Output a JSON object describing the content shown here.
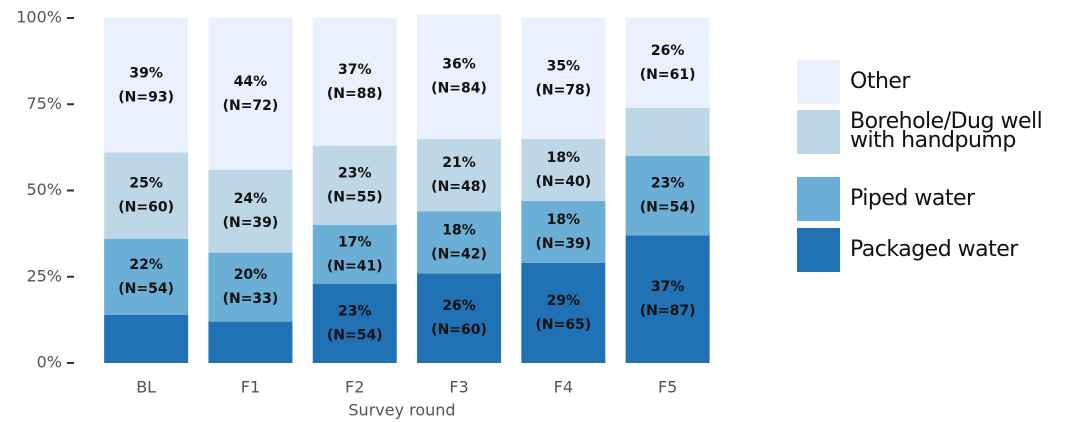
{
  "chart_data": {
    "type": "stacked_bar",
    "x_label": "Survey round",
    "categories": [
      "BL",
      "F1",
      "F2",
      "F3",
      "F4",
      "F5"
    ],
    "series": [
      {
        "name": "Packaged water",
        "color": "#2171b5",
        "values": [
          14,
          12,
          23,
          26,
          29,
          37
        ],
        "value_labels": [
          null,
          null,
          "23%",
          "26%",
          "29%",
          "37%"
        ],
        "n_labels": [
          null,
          null,
          "(N=54)",
          "(N=60)",
          "(N=65)",
          "(N=87)"
        ]
      },
      {
        "name": "Piped water",
        "color": "#6baed6",
        "values": [
          22,
          20,
          17,
          18,
          18,
          23
        ],
        "value_labels": [
          "22%",
          "20%",
          "17%",
          "18%",
          "18%",
          "23%"
        ],
        "n_labels": [
          "(N=54)",
          "(N=33)",
          "(N=41)",
          "(N=42)",
          "(N=39)",
          "(N=54)"
        ]
      },
      {
        "name": "Borehole/Dug well with handpump",
        "color": "#bdd7e7",
        "values": [
          25,
          24,
          23,
          21,
          18,
          14
        ],
        "value_labels": [
          "25%",
          "24%",
          "23%",
          "21%",
          "18%",
          null
        ],
        "n_labels": [
          "(N=60)",
          "(N=39)",
          "(N=55)",
          "(N=48)",
          "(N=40)",
          null
        ]
      },
      {
        "name": "Other",
        "color": "#eaf0fd",
        "values": [
          39,
          44,
          37,
          36,
          35,
          26
        ],
        "value_labels": [
          "39%",
          "44%",
          "37%",
          "36%",
          "35%",
          "26%"
        ],
        "n_labels": [
          "(N=93)",
          "(N=72)",
          "(N=88)",
          "(N=84)",
          "(N=78)",
          "(N=61)"
        ]
      }
    ],
    "ylim": [
      0,
      100
    ],
    "yticks": [
      {
        "value": 0,
        "label": "0%"
      },
      {
        "value": 25,
        "label": "25%"
      },
      {
        "value": 50,
        "label": "50%"
      },
      {
        "value": 75,
        "label": "75%"
      },
      {
        "value": 100,
        "label": "100%"
      }
    ],
    "legend": "right"
  }
}
